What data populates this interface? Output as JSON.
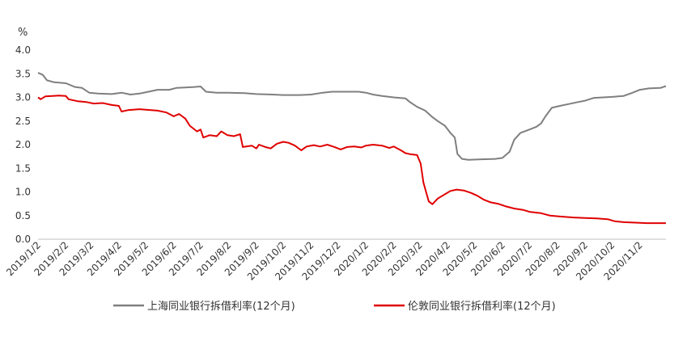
{
  "chart_data": {
    "type": "line",
    "yunit": "%",
    "ylim": [
      0,
      4
    ],
    "yticks": [
      "4.0",
      "3.5",
      "3.0",
      "2.5",
      "2.0",
      "1.5",
      "1.0",
      "0.5",
      "0.0"
    ],
    "xlim": [
      "2019-01-02",
      "2020-12-01"
    ],
    "xticks": [
      "2019/1/2",
      "2019/2/2",
      "2019/3/2",
      "2019/4/2",
      "2019/5/2",
      "2019/6/2",
      "2019/7/2",
      "2019/8/2",
      "2019/9/2",
      "2019/10/2",
      "2019/11/2",
      "2019/12/2",
      "2020/1/2",
      "2020/2/2",
      "2020/3/2",
      "2020/4/2",
      "2020/5/2",
      "2020/6/2",
      "2020/7/2",
      "2020/8/2",
      "2020/9/2",
      "2020/10/2",
      "2020/11/2"
    ],
    "grid": false,
    "legend_position": "bottom",
    "series": [
      {
        "name": "上海同业银行拆借利率(12个月)",
        "color": "#7f7f7f",
        "points": [
          [
            "2019-01-02",
            3.52
          ],
          [
            "2019-01-07",
            3.48
          ],
          [
            "2019-01-12",
            3.36
          ],
          [
            "2019-01-20",
            3.32
          ],
          [
            "2019-02-02",
            3.3
          ],
          [
            "2019-02-12",
            3.22
          ],
          [
            "2019-02-20",
            3.2
          ],
          [
            "2019-02-28",
            3.1
          ],
          [
            "2019-03-10",
            3.08
          ],
          [
            "2019-03-25",
            3.07
          ],
          [
            "2019-04-05",
            3.1
          ],
          [
            "2019-04-15",
            3.06
          ],
          [
            "2019-04-25",
            3.08
          ],
          [
            "2019-05-05",
            3.12
          ],
          [
            "2019-05-15",
            3.16
          ],
          [
            "2019-05-28",
            3.16
          ],
          [
            "2019-06-05",
            3.2
          ],
          [
            "2019-06-15",
            3.21
          ],
          [
            "2019-06-25",
            3.22
          ],
          [
            "2019-07-02",
            3.23
          ],
          [
            "2019-07-08",
            3.12
          ],
          [
            "2019-07-20",
            3.1
          ],
          [
            "2019-08-02",
            3.1
          ],
          [
            "2019-08-20",
            3.09
          ],
          [
            "2019-09-02",
            3.07
          ],
          [
            "2019-09-20",
            3.06
          ],
          [
            "2019-10-02",
            3.05
          ],
          [
            "2019-10-20",
            3.05
          ],
          [
            "2019-11-02",
            3.06
          ],
          [
            "2019-11-15",
            3.1
          ],
          [
            "2019-11-25",
            3.12
          ],
          [
            "2019-12-10",
            3.12
          ],
          [
            "2019-12-25",
            3.12
          ],
          [
            "2020-01-02",
            3.1
          ],
          [
            "2020-01-10",
            3.06
          ],
          [
            "2020-01-20",
            3.03
          ],
          [
            "2020-02-02",
            3.0
          ],
          [
            "2020-02-15",
            2.98
          ],
          [
            "2020-02-20",
            2.9
          ],
          [
            "2020-02-28",
            2.8
          ],
          [
            "2020-03-08",
            2.72
          ],
          [
            "2020-03-15",
            2.6
          ],
          [
            "2020-03-22",
            2.5
          ],
          [
            "2020-03-30",
            2.4
          ],
          [
            "2020-04-05",
            2.25
          ],
          [
            "2020-04-10",
            2.15
          ],
          [
            "2020-04-13",
            1.8
          ],
          [
            "2020-04-18",
            1.7
          ],
          [
            "2020-04-25",
            1.68
          ],
          [
            "2020-05-10",
            1.69
          ],
          [
            "2020-05-25",
            1.7
          ],
          [
            "2020-06-02",
            1.72
          ],
          [
            "2020-06-10",
            1.85
          ],
          [
            "2020-06-15",
            2.1
          ],
          [
            "2020-06-22",
            2.25
          ],
          [
            "2020-07-02",
            2.32
          ],
          [
            "2020-07-10",
            2.38
          ],
          [
            "2020-07-15",
            2.45
          ],
          [
            "2020-07-20",
            2.6
          ],
          [
            "2020-07-27",
            2.78
          ],
          [
            "2020-08-05",
            2.82
          ],
          [
            "2020-08-15",
            2.86
          ],
          [
            "2020-08-25",
            2.9
          ],
          [
            "2020-09-02",
            2.93
          ],
          [
            "2020-09-12",
            2.99
          ],
          [
            "2020-09-22",
            3.0
          ],
          [
            "2020-10-02",
            3.01
          ],
          [
            "2020-10-15",
            3.03
          ],
          [
            "2020-10-25",
            3.1
          ],
          [
            "2020-11-02",
            3.16
          ],
          [
            "2020-11-12",
            3.19
          ],
          [
            "2020-11-25",
            3.2
          ],
          [
            "2020-12-01",
            3.24
          ]
        ]
      },
      {
        "name": "伦敦同业银行拆借利率(12个月)",
        "color": "#e00000",
        "points": [
          [
            "2019-01-02",
            3.0
          ],
          [
            "2019-01-05",
            2.96
          ],
          [
            "2019-01-10",
            3.02
          ],
          [
            "2019-01-18",
            3.03
          ],
          [
            "2019-01-25",
            3.04
          ],
          [
            "2019-02-02",
            3.03
          ],
          [
            "2019-02-05",
            2.96
          ],
          [
            "2019-02-15",
            2.92
          ],
          [
            "2019-02-25",
            2.9
          ],
          [
            "2019-03-05",
            2.87
          ],
          [
            "2019-03-15",
            2.88
          ],
          [
            "2019-03-25",
            2.84
          ],
          [
            "2019-04-02",
            2.82
          ],
          [
            "2019-04-05",
            2.7
          ],
          [
            "2019-04-12",
            2.73
          ],
          [
            "2019-04-25",
            2.75
          ],
          [
            "2019-05-02",
            2.74
          ],
          [
            "2019-05-15",
            2.72
          ],
          [
            "2019-05-25",
            2.68
          ],
          [
            "2019-06-02",
            2.6
          ],
          [
            "2019-06-08",
            2.65
          ],
          [
            "2019-06-15",
            2.55
          ],
          [
            "2019-06-20",
            2.4
          ],
          [
            "2019-06-28",
            2.28
          ],
          [
            "2019-07-02",
            2.32
          ],
          [
            "2019-07-05",
            2.15
          ],
          [
            "2019-07-12",
            2.2
          ],
          [
            "2019-07-20",
            2.18
          ],
          [
            "2019-07-25",
            2.28
          ],
          [
            "2019-08-01",
            2.2
          ],
          [
            "2019-08-08",
            2.18
          ],
          [
            "2019-08-15",
            2.22
          ],
          [
            "2019-08-18",
            1.95
          ],
          [
            "2019-08-28",
            1.98
          ],
          [
            "2019-09-02",
            1.92
          ],
          [
            "2019-09-05",
            2.0
          ],
          [
            "2019-09-12",
            1.95
          ],
          [
            "2019-09-18",
            1.92
          ],
          [
            "2019-09-25",
            2.02
          ],
          [
            "2019-10-02",
            2.06
          ],
          [
            "2019-10-08",
            2.04
          ],
          [
            "2019-10-15",
            1.98
          ],
          [
            "2019-10-22",
            1.88
          ],
          [
            "2019-10-28",
            1.96
          ],
          [
            "2019-11-05",
            1.99
          ],
          [
            "2019-11-12",
            1.96
          ],
          [
            "2019-11-20",
            2.0
          ],
          [
            "2019-11-28",
            1.95
          ],
          [
            "2019-12-05",
            1.9
          ],
          [
            "2019-12-12",
            1.95
          ],
          [
            "2019-12-20",
            1.96
          ],
          [
            "2019-12-28",
            1.94
          ],
          [
            "2020-01-02",
            1.98
          ],
          [
            "2020-01-10",
            2.0
          ],
          [
            "2020-01-20",
            1.98
          ],
          [
            "2020-01-28",
            1.93
          ],
          [
            "2020-02-02",
            1.96
          ],
          [
            "2020-02-10",
            1.88
          ],
          [
            "2020-02-15",
            1.82
          ],
          [
            "2020-02-20",
            1.8
          ],
          [
            "2020-02-28",
            1.78
          ],
          [
            "2020-03-03",
            1.6
          ],
          [
            "2020-03-06",
            1.2
          ],
          [
            "2020-03-09",
            1.0
          ],
          [
            "2020-03-12",
            0.8
          ],
          [
            "2020-03-16",
            0.74
          ],
          [
            "2020-03-22",
            0.86
          ],
          [
            "2020-03-30",
            0.95
          ],
          [
            "2020-04-05",
            1.02
          ],
          [
            "2020-04-12",
            1.05
          ],
          [
            "2020-04-20",
            1.03
          ],
          [
            "2020-04-28",
            0.98
          ],
          [
            "2020-05-05",
            0.92
          ],
          [
            "2020-05-12",
            0.84
          ],
          [
            "2020-05-20",
            0.78
          ],
          [
            "2020-05-28",
            0.75
          ],
          [
            "2020-06-05",
            0.7
          ],
          [
            "2020-06-15",
            0.65
          ],
          [
            "2020-06-25",
            0.62
          ],
          [
            "2020-07-02",
            0.58
          ],
          [
            "2020-07-15",
            0.55
          ],
          [
            "2020-07-25",
            0.5
          ],
          [
            "2020-08-05",
            0.48
          ],
          [
            "2020-08-20",
            0.46
          ],
          [
            "2020-09-02",
            0.45
          ],
          [
            "2020-09-15",
            0.44
          ],
          [
            "2020-09-28",
            0.42
          ],
          [
            "2020-10-05",
            0.38
          ],
          [
            "2020-10-15",
            0.36
          ],
          [
            "2020-10-28",
            0.35
          ],
          [
            "2020-11-10",
            0.34
          ],
          [
            "2020-11-20",
            0.34
          ],
          [
            "2020-12-01",
            0.34
          ]
        ]
      }
    ]
  }
}
